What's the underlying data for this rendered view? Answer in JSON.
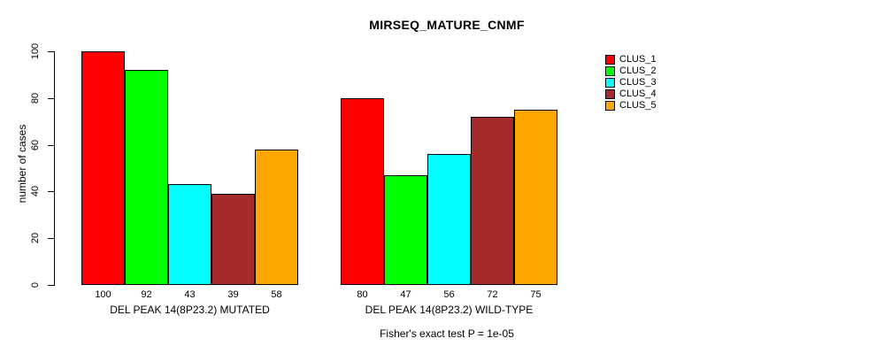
{
  "chart_data": {
    "type": "bar",
    "title": "MIRSEQ_MATURE_CNMF",
    "ylabel": "number of cases",
    "xlabel": "",
    "ylim": [
      0,
      100
    ],
    "yticks": [
      0,
      20,
      40,
      60,
      80,
      100
    ],
    "grid": false,
    "legend_position": "right",
    "series": [
      {
        "name": "CLUS_1",
        "color": "#FF0000"
      },
      {
        "name": "CLUS_2",
        "color": "#00FF00"
      },
      {
        "name": "CLUS_3",
        "color": "#00FFFF"
      },
      {
        "name": "CLUS_4",
        "color": "#A52A2A"
      },
      {
        "name": "CLUS_5",
        "color": "#FFA500"
      }
    ],
    "groups": [
      {
        "label": "DEL PEAK 14(8P23.2) MUTATED",
        "values": [
          100,
          92,
          43,
          39,
          58
        ]
      },
      {
        "label": "DEL PEAK 14(8P23.2) WILD-TYPE",
        "values": [
          80,
          47,
          56,
          72,
          75
        ]
      }
    ],
    "bar_value_labels_shown": true,
    "annotation": "Fisher's exact test P = 1e-05",
    "colors": {
      "axis": "#000000",
      "text": "#000000",
      "background": "#FFFFFF"
    }
  }
}
